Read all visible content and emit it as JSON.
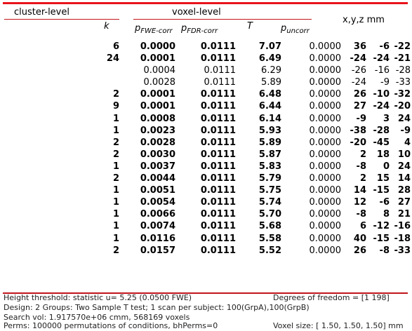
{
  "header": {
    "cluster_level": "cluster-level",
    "voxel_level": "voxel-level",
    "xyz": "x,y,z mm",
    "k": "k",
    "p_fwe_base": "p",
    "p_fwe_sub": "FWE-corr",
    "p_fdr_base": "p",
    "p_fdr_sub": "FDR-corr",
    "t": "T",
    "p_unc_base": "p",
    "p_unc_sub": "uncorr"
  },
  "rows": [
    {
      "k": "6",
      "pfwe": "0.0000",
      "pfdr": "0.0111",
      "t": "7.07",
      "punc": "0.0000",
      "x": "36",
      "y": "-6",
      "z": "-22",
      "bold": true
    },
    {
      "k": "24",
      "pfwe": "0.0001",
      "pfdr": "0.0111",
      "t": "6.49",
      "punc": "0.0000",
      "x": "-24",
      "y": "-24",
      "z": "-21",
      "bold": true
    },
    {
      "k": "",
      "pfwe": "0.0004",
      "pfdr": "0.0111",
      "t": "6.29",
      "punc": "0.0000",
      "x": "-26",
      "y": "-16",
      "z": "-28",
      "bold": false
    },
    {
      "k": "",
      "pfwe": "0.0028",
      "pfdr": "0.0111",
      "t": "5.89",
      "punc": "0.0000",
      "x": "-24",
      "y": "-9",
      "z": "-33",
      "bold": false
    },
    {
      "k": "2",
      "pfwe": "0.0001",
      "pfdr": "0.0111",
      "t": "6.48",
      "punc": "0.0000",
      "x": "26",
      "y": "-10",
      "z": "-32",
      "bold": true
    },
    {
      "k": "9",
      "pfwe": "0.0001",
      "pfdr": "0.0111",
      "t": "6.44",
      "punc": "0.0000",
      "x": "27",
      "y": "-24",
      "z": "-20",
      "bold": true
    },
    {
      "k": "1",
      "pfwe": "0.0008",
      "pfdr": "0.0111",
      "t": "6.14",
      "punc": "0.0000",
      "x": "-9",
      "y": "3",
      "z": "24",
      "bold": true
    },
    {
      "k": "1",
      "pfwe": "0.0023",
      "pfdr": "0.0111",
      "t": "5.93",
      "punc": "0.0000",
      "x": "-38",
      "y": "-28",
      "z": "-9",
      "bold": true
    },
    {
      "k": "2",
      "pfwe": "0.0028",
      "pfdr": "0.0111",
      "t": "5.89",
      "punc": "0.0000",
      "x": "-20",
      "y": "-45",
      "z": "4",
      "bold": true
    },
    {
      "k": "2",
      "pfwe": "0.0030",
      "pfdr": "0.0111",
      "t": "5.87",
      "punc": "0.0000",
      "x": "2",
      "y": "18",
      "z": "10",
      "bold": true
    },
    {
      "k": "1",
      "pfwe": "0.0037",
      "pfdr": "0.0111",
      "t": "5.83",
      "punc": "0.0000",
      "x": "-8",
      "y": "0",
      "z": "24",
      "bold": true
    },
    {
      "k": "2",
      "pfwe": "0.0044",
      "pfdr": "0.0111",
      "t": "5.79",
      "punc": "0.0000",
      "x": "2",
      "y": "15",
      "z": "14",
      "bold": true
    },
    {
      "k": "1",
      "pfwe": "0.0051",
      "pfdr": "0.0111",
      "t": "5.75",
      "punc": "0.0000",
      "x": "14",
      "y": "-15",
      "z": "28",
      "bold": true
    },
    {
      "k": "1",
      "pfwe": "0.0054",
      "pfdr": "0.0111",
      "t": "5.74",
      "punc": "0.0000",
      "x": "12",
      "y": "-6",
      "z": "27",
      "bold": true
    },
    {
      "k": "1",
      "pfwe": "0.0066",
      "pfdr": "0.0111",
      "t": "5.70",
      "punc": "0.0000",
      "x": "-8",
      "y": "8",
      "z": "21",
      "bold": true
    },
    {
      "k": "1",
      "pfwe": "0.0074",
      "pfdr": "0.0111",
      "t": "5.68",
      "punc": "0.0000",
      "x": "6",
      "y": "-12",
      "z": "-16",
      "bold": true
    },
    {
      "k": "1",
      "pfwe": "0.0116",
      "pfdr": "0.0111",
      "t": "5.58",
      "punc": "0.0000",
      "x": "40",
      "y": "-15",
      "z": "-18",
      "bold": true
    },
    {
      "k": "2",
      "pfwe": "0.0157",
      "pfdr": "0.0111",
      "t": "5.52",
      "punc": "0.0000",
      "x": "26",
      "y": "-8",
      "z": "-33",
      "bold": true
    }
  ],
  "footer": {
    "threshold": "Height threshold: statistic u=   5.25 (0.0500 FWE)",
    "dof": "Degrees of freedom = [1 198]",
    "design": "Design: 2 Groups: Two Sample T test; 1 scan per subject: 100(GrpA),100(GrpB)",
    "search_vol": "Search vol: 1.917570e+06 cmm, 568169 voxels",
    "perms": "Perms: 100000 permutations of conditions, bhPerms=0",
    "voxel_size": "Voxel size: [ 1.50,  1.50,  1.50] mm"
  }
}
